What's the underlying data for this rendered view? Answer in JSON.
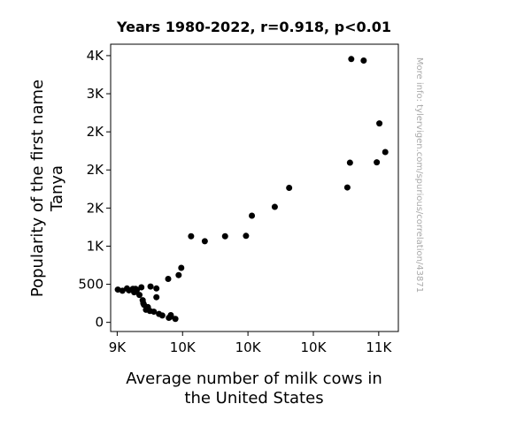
{
  "chart_data": {
    "type": "scatter",
    "title": "Years 1980-2022, r=0.918, p<0.01",
    "xlabel_lines": [
      "Average number of milk cows in",
      "the United States"
    ],
    "ylabel_lines": [
      "Popularity of the first name",
      "Tanya"
    ],
    "watermark": "More info: tylervigen.com/spurious/correlation/43871",
    "xlim": [
      8950,
      11150
    ],
    "ylim": [
      -120,
      3650
    ],
    "x_ticks": [
      {
        "value": 9000,
        "label": "9K"
      },
      {
        "value": 9500,
        "label": "10K"
      },
      {
        "value": 10000,
        "label": "10K"
      },
      {
        "value": 10500,
        "label": "10K"
      },
      {
        "value": 11000,
        "label": "11K"
      }
    ],
    "y_ticks": [
      {
        "value": 0,
        "label": "0"
      },
      {
        "value": 500,
        "label": "500"
      },
      {
        "value": 1000,
        "label": "1K"
      },
      {
        "value": 1500,
        "label": "2K"
      },
      {
        "value": 2000,
        "label": "2K"
      },
      {
        "value": 2500,
        "label": "2K"
      },
      {
        "value": 3000,
        "label": "3K"
      },
      {
        "value": 3500,
        "label": "4K"
      }
    ],
    "points": [
      [
        9005,
        430
      ],
      [
        9040,
        415
      ],
      [
        9075,
        445
      ],
      [
        9090,
        420
      ],
      [
        9120,
        440
      ],
      [
        9130,
        395
      ],
      [
        9150,
        425
      ],
      [
        9170,
        360
      ],
      [
        9185,
        460
      ],
      [
        9195,
        290
      ],
      [
        9200,
        250
      ],
      [
        9205,
        230
      ],
      [
        9220,
        165
      ],
      [
        9235,
        200
      ],
      [
        9250,
        150
      ],
      [
        9255,
        470
      ],
      [
        9280,
        140
      ],
      [
        9300,
        330
      ],
      [
        9320,
        110
      ],
      [
        9345,
        90
      ],
      [
        9390,
        570
      ],
      [
        9395,
        60
      ],
      [
        9410,
        95
      ],
      [
        9410,
        75
      ],
      [
        9445,
        45
      ],
      [
        9470,
        620
      ],
      [
        9490,
        715
      ],
      [
        9565,
        1130
      ],
      [
        9670,
        1065
      ],
      [
        9825,
        1130
      ],
      [
        9985,
        1135
      ],
      [
        10030,
        1400
      ],
      [
        10205,
        1515
      ],
      [
        10315,
        1765
      ],
      [
        10760,
        1770
      ],
      [
        10780,
        2095
      ],
      [
        10790,
        3455
      ],
      [
        10885,
        3435
      ],
      [
        10985,
        2100
      ],
      [
        11005,
        2610
      ],
      [
        11050,
        2235
      ],
      [
        9140,
        440
      ],
      [
        9300,
        445
      ]
    ],
    "point_color": "#000000"
  }
}
